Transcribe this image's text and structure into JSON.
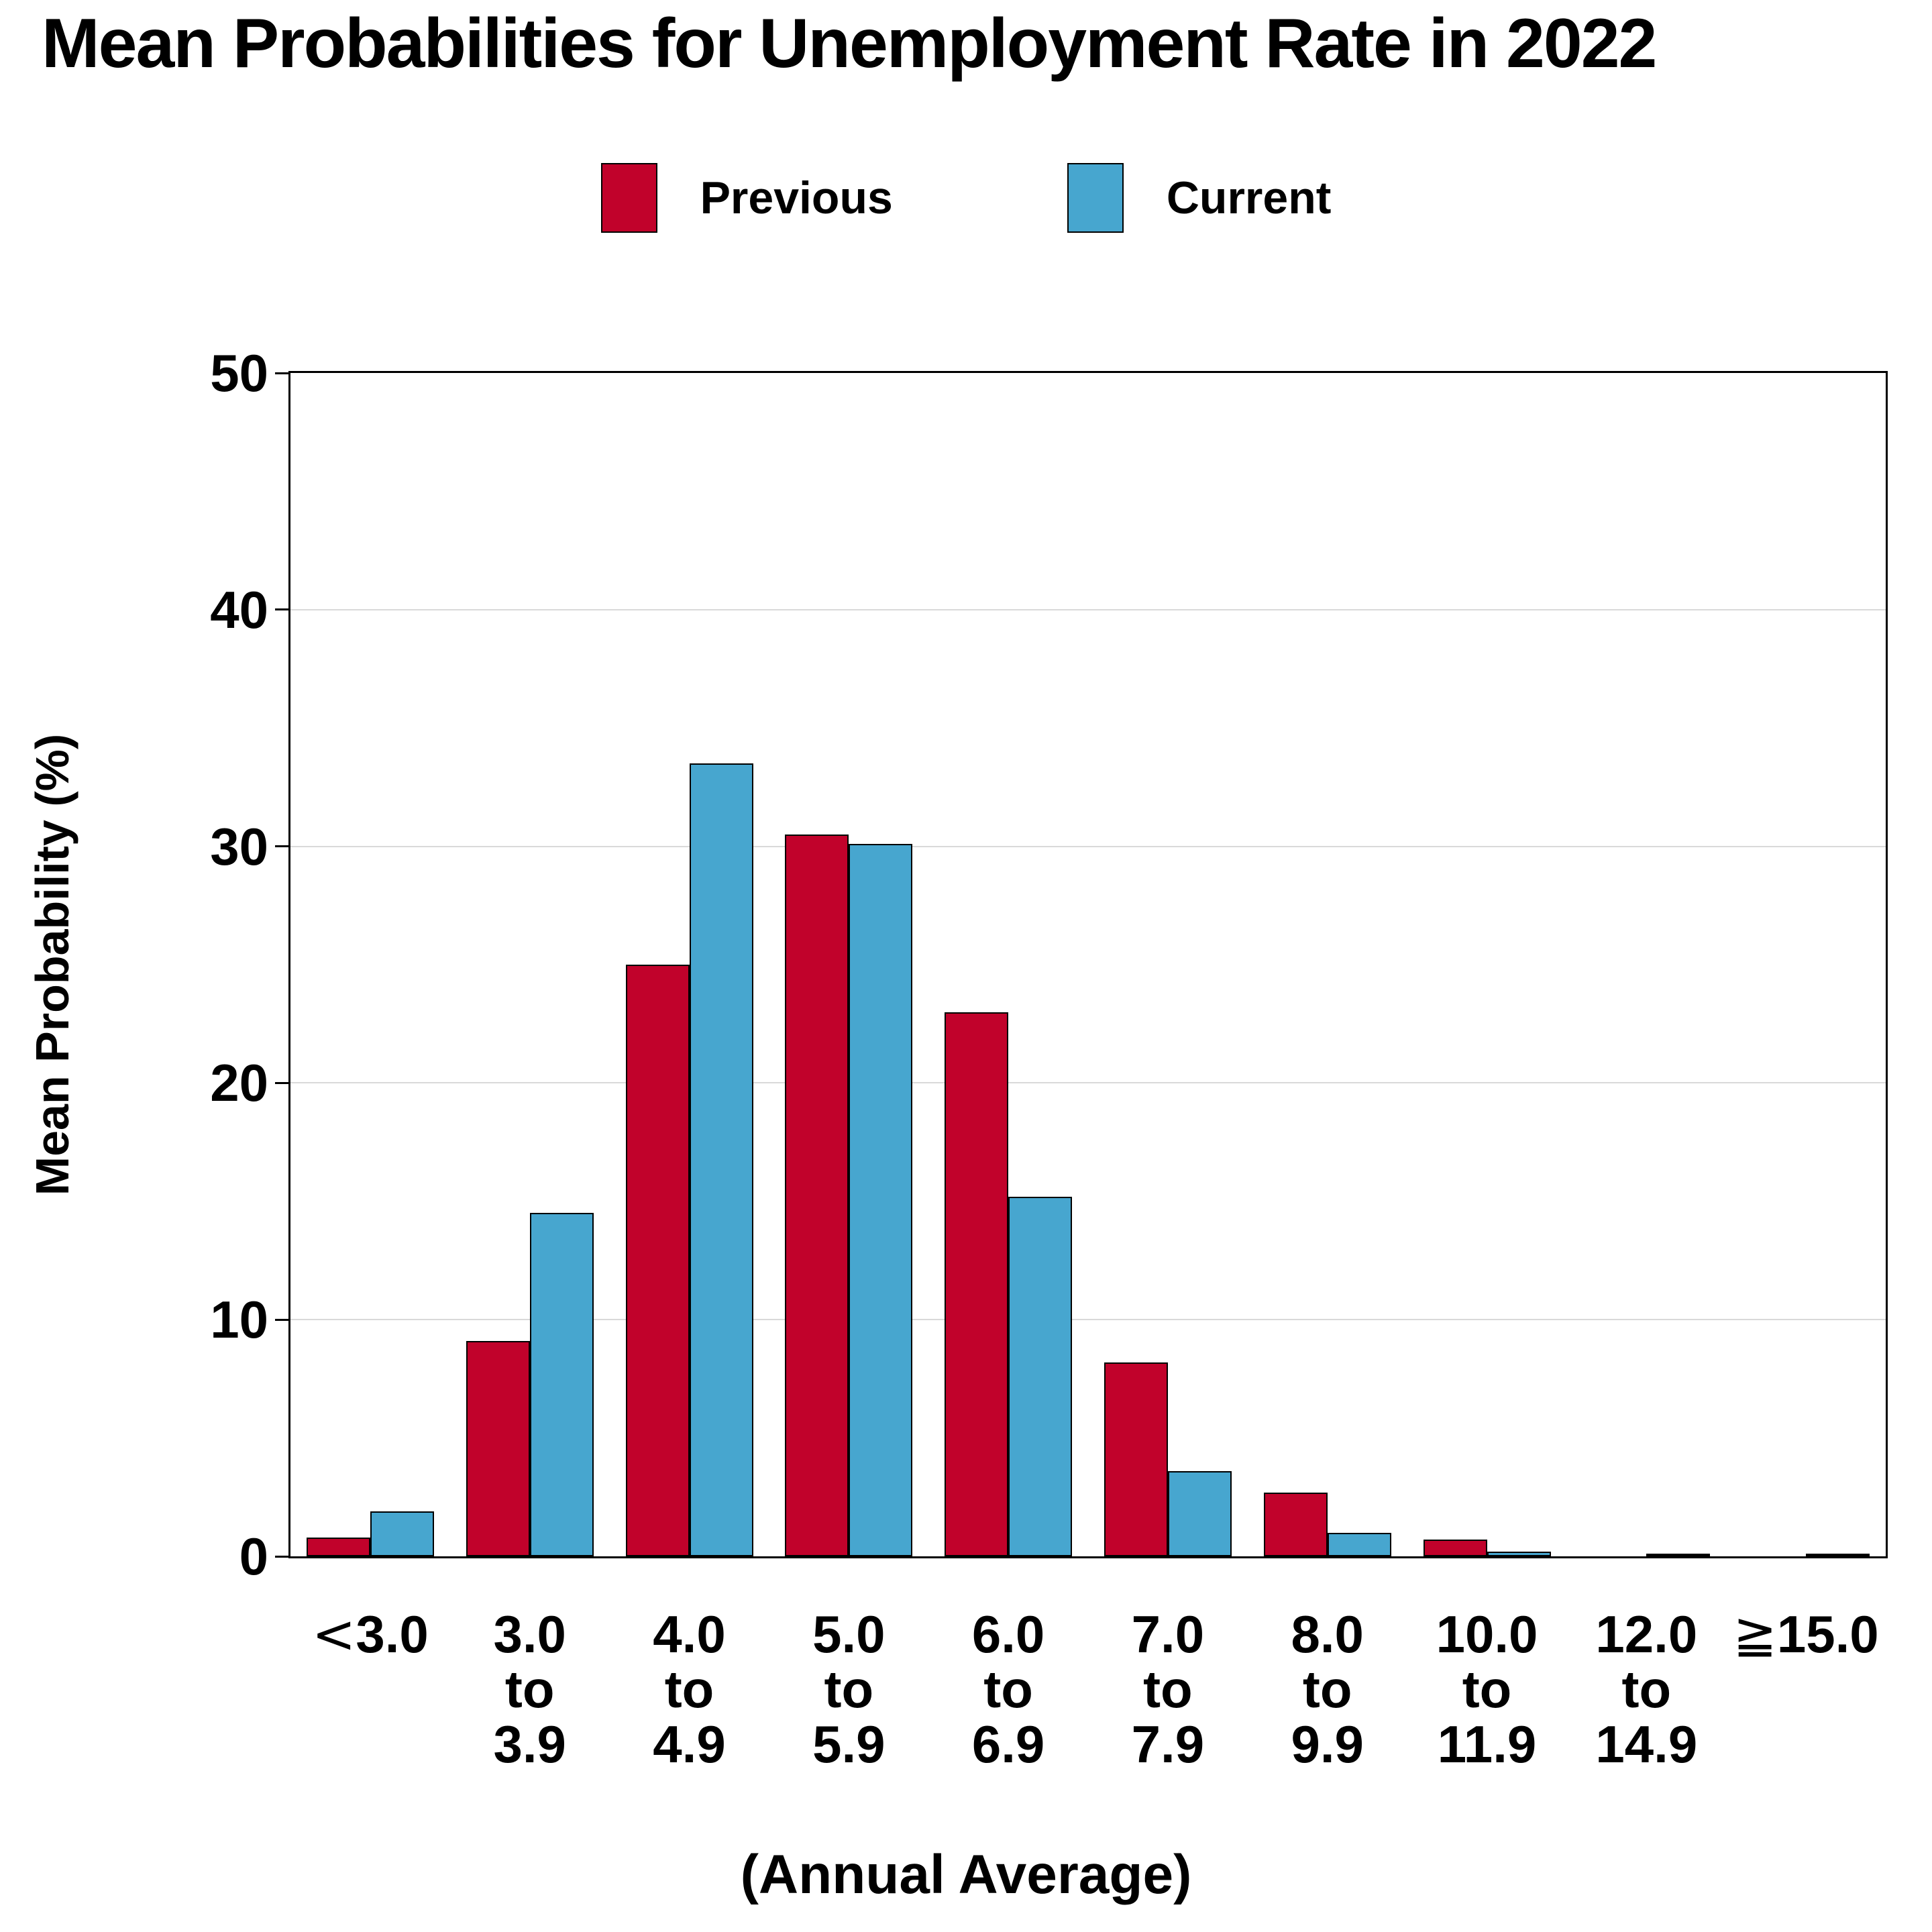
{
  "title": "Mean Probabilities for Unemployment Rate in 2022",
  "legend": [
    {
      "label": "Previous",
      "color": "#C1022B"
    },
    {
      "label": "Current",
      "color": "#47A6CF"
    }
  ],
  "colors": {
    "previous": "#C1022B",
    "current": "#47A6CF",
    "gridline": "#D9D9D9",
    "frame": "#000000"
  },
  "chart_data": {
    "type": "bar",
    "title": "Mean Probabilities for Unemployment Rate in 2022",
    "xlabel": "(Annual Average)",
    "ylabel": "Mean Probability (%)",
    "ylim": [
      0,
      50
    ],
    "yticks": [
      0,
      10,
      20,
      30,
      40,
      50
    ],
    "grid": "horizontal",
    "legend_position": "top-center",
    "categories": [
      {
        "prefix": "<",
        "lines": [
          "3.0"
        ]
      },
      {
        "prefix": "",
        "lines": [
          "3.0",
          "to",
          "3.9"
        ]
      },
      {
        "prefix": "",
        "lines": [
          "4.0",
          "to",
          "4.9"
        ]
      },
      {
        "prefix": "",
        "lines": [
          "5.0",
          "to",
          "5.9"
        ]
      },
      {
        "prefix": "",
        "lines": [
          "6.0",
          "to",
          "6.9"
        ]
      },
      {
        "prefix": "",
        "lines": [
          "7.0",
          "to",
          "7.9"
        ]
      },
      {
        "prefix": "",
        "lines": [
          "8.0",
          "to",
          "9.9"
        ]
      },
      {
        "prefix": "",
        "lines": [
          "10.0",
          "to",
          "11.9"
        ]
      },
      {
        "prefix": "",
        "lines": [
          "12.0",
          "to",
          "14.9"
        ]
      },
      {
        "prefix": "≧",
        "lines": [
          "15.0"
        ]
      }
    ],
    "series": [
      {
        "name": "Previous",
        "color": "#C1022B",
        "values": [
          0.8,
          9.1,
          25.0,
          30.5,
          23.0,
          8.2,
          2.7,
          0.7,
          0.0,
          0.0
        ]
      },
      {
        "name": "Current",
        "color": "#47A6CF",
        "values": [
          1.9,
          14.5,
          33.5,
          30.1,
          15.2,
          3.6,
          1.0,
          0.2,
          0.1,
          0.05
        ]
      }
    ]
  }
}
